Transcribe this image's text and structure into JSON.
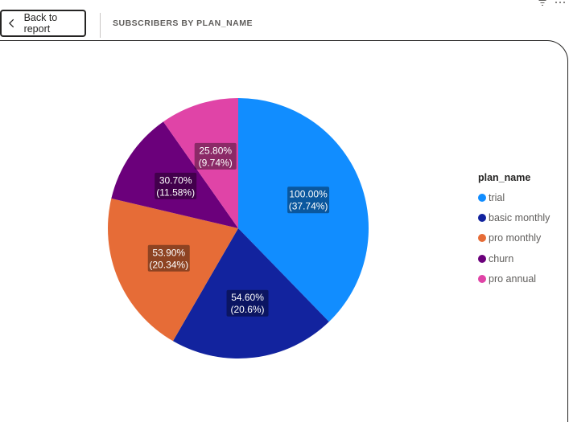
{
  "header": {
    "back_label": "Back to report",
    "title": "SUBSCRIBERS BY PLAN_NAME"
  },
  "icons": [
    "chevron-left-icon",
    "filter-icon",
    "more-options-icon"
  ],
  "chart_data": {
    "type": "pie",
    "title": "SUBSCRIBERS BY PLAN_NAME",
    "legend_title": "plan_name",
    "legend_position": "right",
    "start_angle_deg": 0,
    "direction": "clockwise",
    "slices": [
      {
        "name": "trial",
        "value": 37.74,
        "label_line1": "100.00%",
        "label_line2": "(37.74%)",
        "color": "#118dff"
      },
      {
        "name": "basic monthly",
        "value": 20.6,
        "label_line1": "54.60%",
        "label_line2": "(20.6%)",
        "color": "#12239e"
      },
      {
        "name": "pro monthly",
        "value": 20.34,
        "label_line1": "53.90%",
        "label_line2": "(20.34%)",
        "color": "#e66c37"
      },
      {
        "name": "churn",
        "value": 11.58,
        "label_line1": "30.70%",
        "label_line2": "(11.58%)",
        "color": "#6b007b"
      },
      {
        "name": "pro annual",
        "value": 9.74,
        "label_line1": "25.80%",
        "label_line2": "(9.74%)",
        "color": "#e044a7"
      }
    ]
  }
}
